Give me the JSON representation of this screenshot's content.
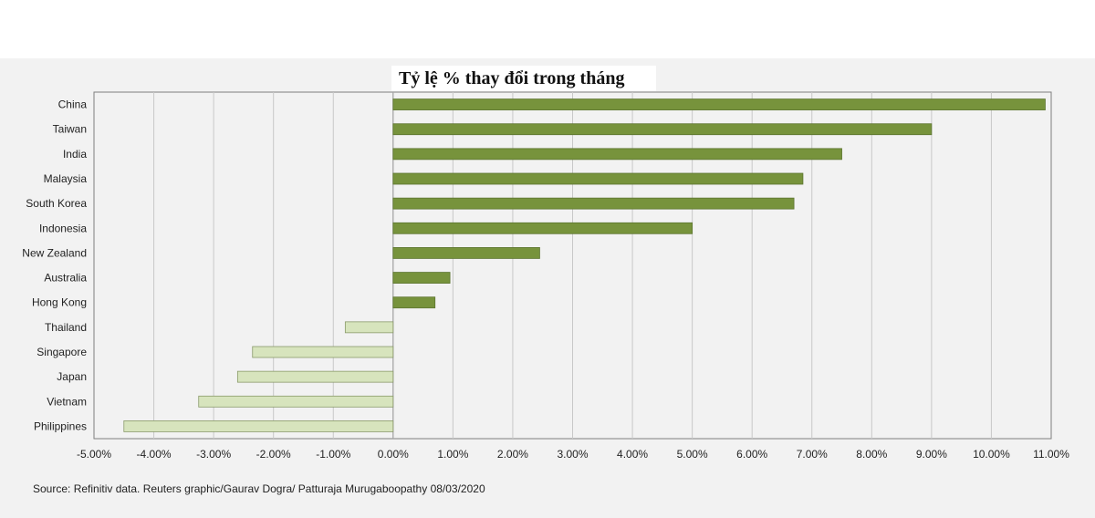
{
  "chart_data": {
    "type": "bar",
    "orientation": "horizontal",
    "title": "Tỷ lệ % thay đổi trong tháng",
    "categories": [
      "China",
      "Taiwan",
      "India",
      "Malaysia",
      "South Korea",
      "Indonesia",
      "New Zealand",
      "Australia",
      "Hong Kong",
      "Thailand",
      "Singapore",
      "Japan",
      "Vietnam",
      "Philippines"
    ],
    "values": [
      10.9,
      9.0,
      7.5,
      6.85,
      6.7,
      5.0,
      2.45,
      0.95,
      0.7,
      -0.8,
      -2.35,
      -2.6,
      -3.25,
      -4.5
    ],
    "xlim": [
      -5,
      11
    ],
    "xticks": [
      -5,
      -4,
      -3,
      -2,
      -1,
      0,
      1,
      2,
      3,
      4,
      5,
      6,
      7,
      8,
      9,
      10,
      11
    ],
    "xtick_labels": [
      "-5.00%",
      "-4.00%",
      "-3.00%",
      "-2.00%",
      "-1.00%",
      "0.00%",
      "1.00%",
      "2.00%",
      "3.00%",
      "4.00%",
      "5.00%",
      "6.00%",
      "7.00%",
      "8.00%",
      "9.00%",
      "10.00%",
      "11.00%"
    ],
    "grid": true,
    "colors": {
      "positive_fill": "#77933c",
      "positive_stroke": "#5d7530",
      "negative_fill": "#d7e4bd",
      "negative_stroke": "#8a9a6a",
      "gridline": "#c8c8c8",
      "plot_border": "#7f7f7f"
    }
  },
  "source": "Source: Refinitiv data. Reuters graphic/Gaurav Dogra/ Patturaja Murugaboopathy 08/03/2020"
}
